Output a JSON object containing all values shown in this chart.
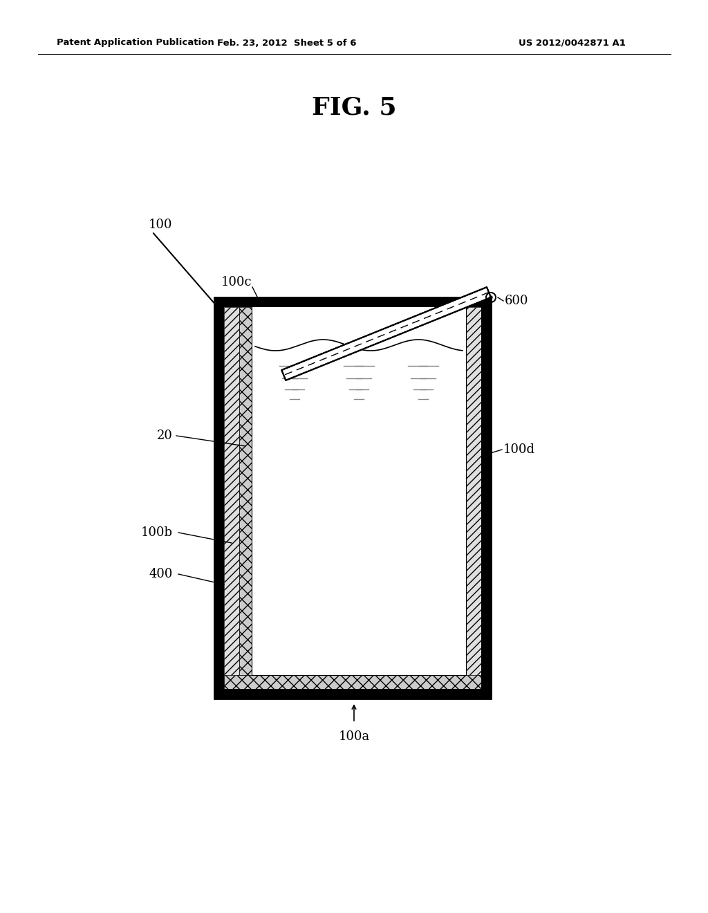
{
  "bg_color": "#ffffff",
  "header_left": "Patent Application Publication",
  "header_mid": "Feb. 23, 2012  Sheet 5 of 6",
  "header_right": "US 2012/0042871 A1",
  "fig_label": "FIG. 5",
  "label_100": "100",
  "label_100a": "100a",
  "label_100b": "100b",
  "label_100c": "100c",
  "label_100d": "100d",
  "label_20": "20",
  "label_400": "400",
  "label_600": "600"
}
